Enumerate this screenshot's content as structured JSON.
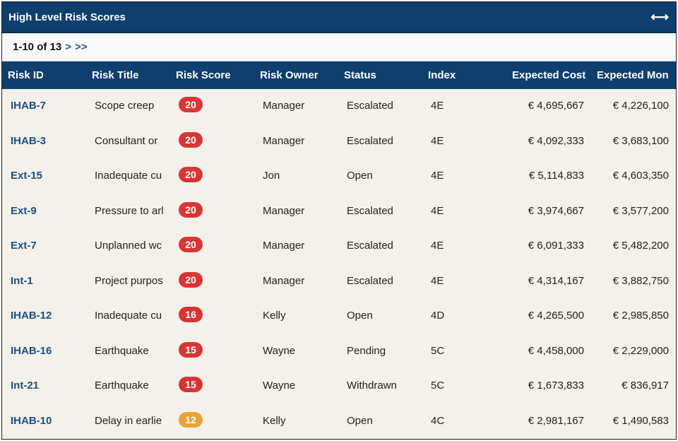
{
  "panel": {
    "title": "High Level Risk Scores",
    "expand_icon": "⟷"
  },
  "pager": {
    "range": "1-10 of 13",
    "next": ">",
    "last": ">>"
  },
  "columns": [
    "Risk ID",
    "Risk Title",
    "Risk Score",
    "Risk Owner",
    "Status",
    "Index",
    "Expected Cost",
    "Expected Mon"
  ],
  "colors": {
    "header": "#0e3f6e",
    "score_high": "#d93535",
    "score_medium": "#e8a33a",
    "row_bg": "#f3f1e9",
    "link": "#1b4f86"
  },
  "rows": [
    {
      "id": "IHAB-7",
      "title": "Scope creep",
      "score": "20",
      "level": "high",
      "owner": "Manager",
      "status": "Escalated",
      "index": "4E",
      "cost": "€ 4,695,667",
      "mon": "€ 4,226,100"
    },
    {
      "id": "IHAB-3",
      "title": "Consultant or",
      "score": "20",
      "level": "high",
      "owner": "Manager",
      "status": "Escalated",
      "index": "4E",
      "cost": "€ 4,092,333",
      "mon": "€ 3,683,100"
    },
    {
      "id": "Ext-15",
      "title": "Inadequate cu",
      "score": "20",
      "level": "high",
      "owner": "Jon",
      "status": "Open",
      "index": "4E",
      "cost": "€ 5,114,833",
      "mon": "€ 4,603,350"
    },
    {
      "id": "Ext-9",
      "title": "Pressure to arl",
      "score": "20",
      "level": "high",
      "owner": "Manager",
      "status": "Escalated",
      "index": "4E",
      "cost": "€ 3,974,667",
      "mon": "€ 3,577,200"
    },
    {
      "id": "Ext-7",
      "title": "Unplanned wc",
      "score": "20",
      "level": "high",
      "owner": "Manager",
      "status": "Escalated",
      "index": "4E",
      "cost": "€ 6,091,333",
      "mon": "€ 5,482,200"
    },
    {
      "id": "Int-1",
      "title": "Project purpos",
      "score": "20",
      "level": "high",
      "owner": "Manager",
      "status": "Escalated",
      "index": "4E",
      "cost": "€ 4,314,167",
      "mon": "€ 3,882,750"
    },
    {
      "id": "IHAB-12",
      "title": "Inadequate cu",
      "score": "16",
      "level": "high",
      "owner": "Kelly",
      "status": "Open",
      "index": "4D",
      "cost": "€ 4,265,500",
      "mon": "€ 2,985,850"
    },
    {
      "id": "IHAB-16",
      "title": "Earthquake",
      "score": "15",
      "level": "high",
      "owner": "Wayne",
      "status": "Pending",
      "index": "5C",
      "cost": "€ 4,458,000",
      "mon": "€ 2,229,000"
    },
    {
      "id": "Int-21",
      "title": "Earthquake",
      "score": "15",
      "level": "high",
      "owner": "Wayne",
      "status": "Withdrawn",
      "index": "5C",
      "cost": "€ 1,673,833",
      "mon": "€ 836,917"
    },
    {
      "id": "IHAB-10",
      "title": "Delay in earlie",
      "score": "12",
      "level": "medium",
      "owner": "Kelly",
      "status": "Open",
      "index": "4C",
      "cost": "€ 2,981,167",
      "mon": "€ 1,490,583"
    }
  ]
}
